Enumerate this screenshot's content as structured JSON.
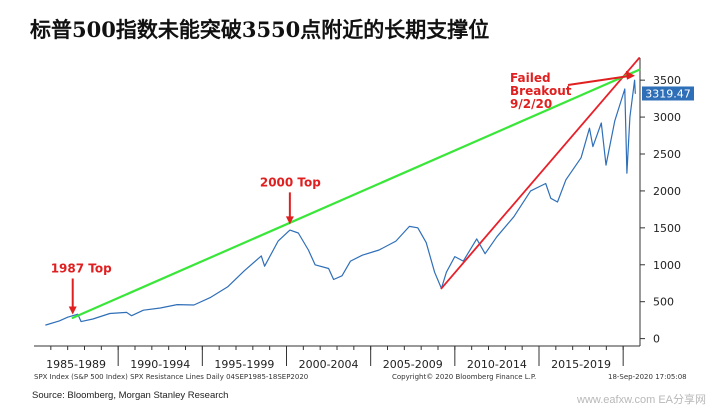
{
  "headline": "标普500指数未能突破3550点附近的长期支撑位",
  "source": "Source: Bloomberg, Morgan Stanley Research",
  "watermark": "www.eafxw.com EA分享网",
  "footer": {
    "left": "SPX Index (S&P 500 Index) SPX Resistance Lines  Daily 04SEP1985-18SEP2020",
    "center": "Copyright© 2020 Bloomberg Finance L.P.",
    "right": "18-Sep-2020 17:05:08"
  },
  "colors": {
    "price_line": "#2f6fb8",
    "long_term_trendline": "#39e639",
    "post_2009_trendline": "#e8202a",
    "annotation": "#e02020",
    "last_value_badge": "#2f6fb8"
  },
  "chart_data": {
    "type": "line",
    "title": "",
    "xlabel": "",
    "ylabel": "",
    "ylim": [
      -100,
      3800
    ],
    "xlim": [
      1985.0,
      2021.0
    ],
    "y_ticks": [
      0,
      500,
      1000,
      1500,
      2000,
      2500,
      3000,
      3500
    ],
    "x_tick_labels": [
      "1985-1989",
      "1990-1994",
      "1995-1999",
      "2000-2004",
      "2005-2009",
      "2010-2014",
      "2015-2019"
    ],
    "grid": false,
    "last_value": "3319.47",
    "series": [
      {
        "x": [
          1985.7,
          1986.5,
          1987.0,
          1987.6,
          1987.8,
          1988.5,
          1989.5,
          1990.5,
          1990.8,
          1991.5,
          1992.5,
          1993.5,
          1994.5,
          1995.5,
          1996.5,
          1997.5,
          1998.5,
          1998.7,
          1999.5,
          2000.2,
          2000.7,
          2001.3,
          2001.7,
          2002.5,
          2002.8,
          2003.3,
          2003.8,
          2004.5,
          2005.5,
          2006.5,
          2007.3,
          2007.8,
          2008.3,
          2008.8,
          2009.2,
          2009.5,
          2010.0,
          2010.5,
          2011.3,
          2011.8,
          2012.5,
          2013.5,
          2014.5,
          2015.4,
          2015.7,
          2016.1,
          2016.6,
          2017.5,
          2018.0,
          2018.2,
          2018.7,
          2018.98,
          2019.5,
          2020.1,
          2020.22,
          2020.4,
          2020.68,
          2020.72
        ],
        "values": [
          185,
          240,
          290,
          330,
          230,
          265,
          340,
          355,
          310,
          385,
          415,
          460,
          455,
          560,
          700,
          920,
          1120,
          980,
          1320,
          1470,
          1430,
          1200,
          1000,
          950,
          800,
          850,
          1050,
          1130,
          1200,
          1320,
          1520,
          1500,
          1300,
          900,
          680,
          900,
          1110,
          1050,
          1350,
          1150,
          1380,
          1650,
          2000,
          2100,
          1900,
          1850,
          2150,
          2450,
          2850,
          2600,
          2920,
          2350,
          2950,
          3380,
          2240,
          3000,
          3500,
          3320
        ]
      },
      {
        "x": [
          1987.3,
          2020.95
        ],
        "values": [
          280,
          3640
        ]
      },
      {
        "x": [
          2009.2,
          2020.95
        ],
        "values": [
          680,
          3800
        ]
      }
    ],
    "annotations": [
      {
        "text": "1987 Top",
        "x": 1987.3,
        "y": 300
      },
      {
        "text": "2000 Top",
        "x": 2000.2,
        "y": 1520
      },
      {
        "lines": [
          "Failed",
          "Breakout",
          "9/2/20"
        ],
        "x": 2020.7,
        "y": 3560
      }
    ]
  }
}
